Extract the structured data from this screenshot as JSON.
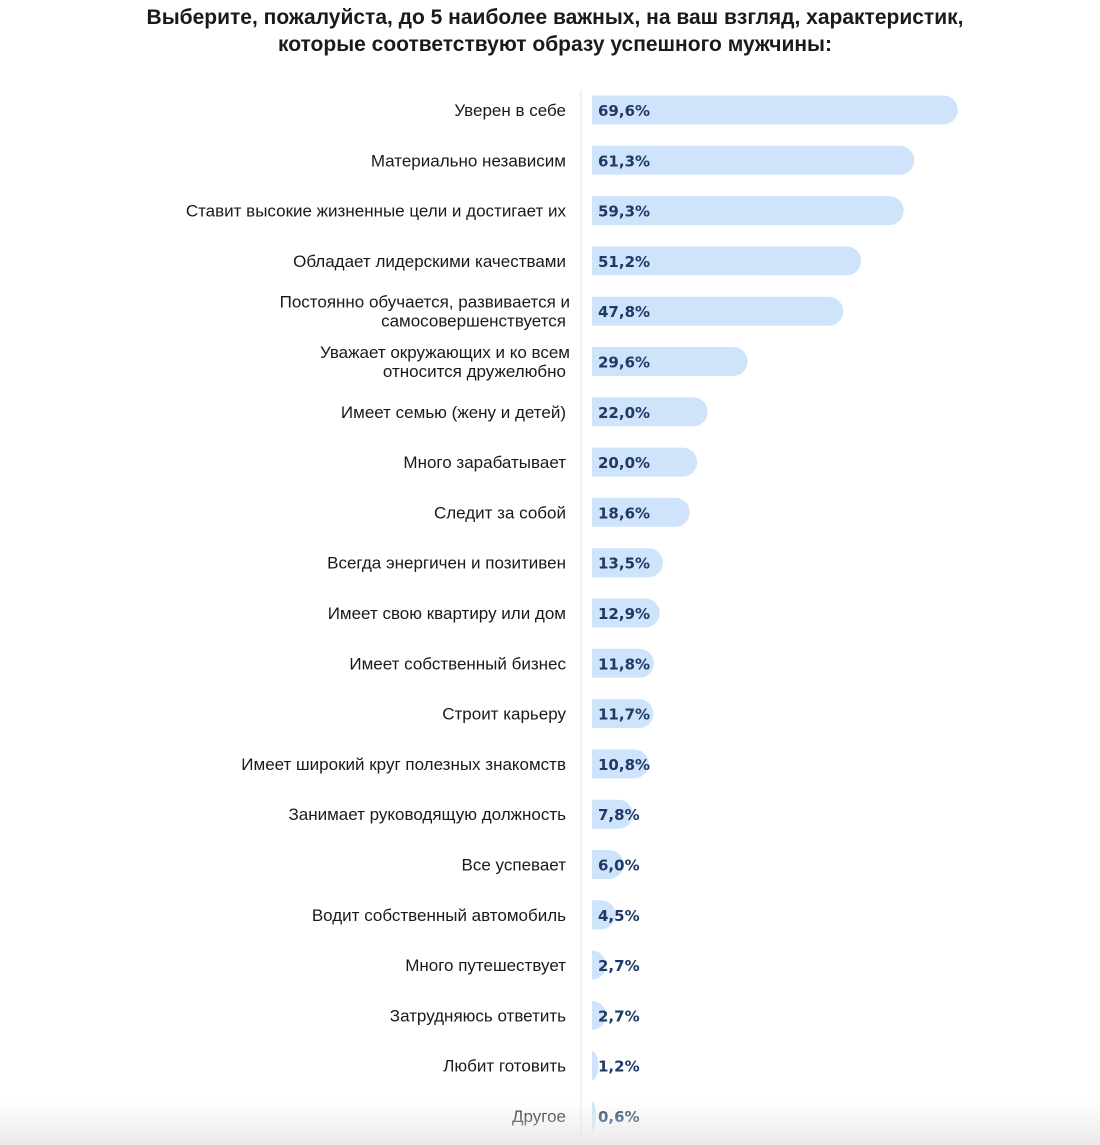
{
  "chart_data": {
    "type": "bar",
    "orientation": "horizontal",
    "title_lines": [
      "Выберите, пожалуйста, до 5 наиболее важных, на ваш взгляд, характеристик,",
      "которые соответствуют образу успешного мужчины:"
    ],
    "categories": [
      [
        "Уверен в себе"
      ],
      [
        "Материально независим"
      ],
      [
        "Ставит высокие жизненные цели и достигает их"
      ],
      [
        "Обладает лидерскими качествами"
      ],
      [
        "Постоянно обучается, развивается и",
        "самосовершенствуется"
      ],
      [
        "Уважает окружающих и ко всем",
        "относится дружелюбно"
      ],
      [
        "Имеет семью (жену и детей)"
      ],
      [
        "Много зарабатывает"
      ],
      [
        "Следит за собой"
      ],
      [
        "Всегда энергичен и позитивен"
      ],
      [
        "Имеет свою квартиру или дом"
      ],
      [
        "Имеет собственный бизнес"
      ],
      [
        "Строит карьеру"
      ],
      [
        "Имеет широкий круг полезных знакомств"
      ],
      [
        "Занимает руководящую должность"
      ],
      [
        "Все успевает"
      ],
      [
        "Водит собственный автомобиль"
      ],
      [
        "Много путешествует"
      ],
      [
        "Затрудняюсь ответить"
      ],
      [
        "Любит готовить"
      ],
      [
        "Другое"
      ]
    ],
    "values": [
      69.6,
      61.3,
      59.3,
      51.2,
      47.8,
      29.6,
      22.0,
      20.0,
      18.6,
      13.5,
      12.9,
      11.8,
      11.7,
      10.8,
      7.8,
      6.0,
      4.5,
      2.7,
      2.7,
      1.2,
      0.6
    ],
    "value_labels": [
      "69,6%",
      "61,3%",
      "59,3%",
      "51,2%",
      "47,8%",
      "29,6%",
      "22,0%",
      "20,0%",
      "18,6%",
      "13,5%",
      "12,9%",
      "11,8%",
      "11,7%",
      "10,8%",
      "7,8%",
      "6,0%",
      "4,5%",
      "2,7%",
      "2,7%",
      "1,2%",
      "0,6%"
    ],
    "xlim": [
      0,
      70
    ],
    "unit": "%",
    "bar_color": "#cfe4fb",
    "label_color": "#1e3a66",
    "axis_line_color": "#e3e3e3",
    "legend": "none",
    "grid": false
  }
}
